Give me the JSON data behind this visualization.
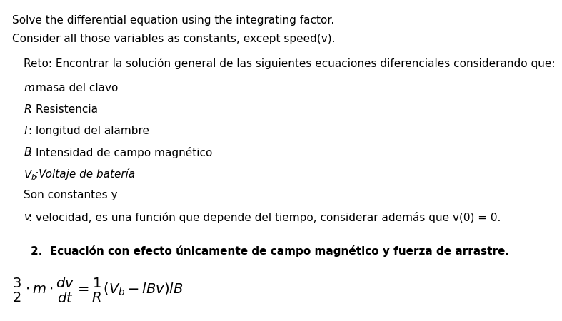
{
  "background_color": "#ffffff",
  "header_line1": "Solve the differential equation using the integrating factor.",
  "header_line2": "Consider all those variables as constants, except speed(v).",
  "reto_text": "Reto: Encontrar la solución general de las siguientes ecuaciones diferenciales considerando que:",
  "variables": [
    {
      "italic_part": "m",
      "normal_part": ": masa del clavo"
    },
    {
      "italic_part": "R",
      "normal_part": ": Resistencia"
    },
    {
      "italic_part": "l",
      "normal_part": ": longitud del alambre"
    },
    {
      "italic_part": "B",
      "normal_part": ": Intensidad de campo magnético"
    },
    {
      "italic_part": "V_b",
      "normal_part": ":Voltaje de batería"
    },
    {
      "italic_part": null,
      "normal_part": "Son constantes y"
    },
    {
      "italic_part": "v",
      "normal_part": ": velocidad, es una función que depende del tiempo, considerar además que v(0) = 0."
    }
  ],
  "section_number": "2.",
  "section_title": "  Ecuación con efecto únicamente de campo magnético y fuerza de arrastre.",
  "font_size_header": 11,
  "font_size_body": 11,
  "font_size_section": 11,
  "font_size_equation": 14
}
